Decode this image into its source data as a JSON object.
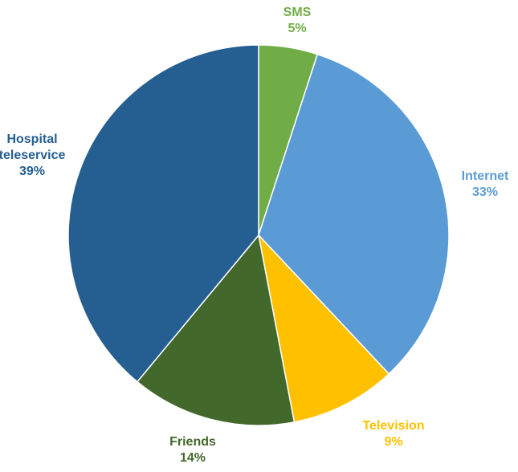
{
  "chart_data": {
    "type": "pie",
    "slices": [
      {
        "label_lines": [
          "SMS"
        ],
        "value_label": "5%",
        "value": 5,
        "color": "#70ad47"
      },
      {
        "label_lines": [
          "Internet"
        ],
        "value_label": "33%",
        "value": 33,
        "color": "#5b9bd5"
      },
      {
        "label_lines": [
          "Television"
        ],
        "value_label": "9%",
        "value": 9,
        "color": "#ffc000"
      },
      {
        "label_lines": [
          "Friends"
        ],
        "value_label": "14%",
        "value": 14,
        "color": "#43682b"
      },
      {
        "label_lines": [
          "Hospital",
          "teleservice"
        ],
        "value_label": "39%",
        "value": 39,
        "color": "#255e91"
      }
    ],
    "start_angle_deg": 0,
    "direction": "clockwise",
    "labels": "outside"
  }
}
